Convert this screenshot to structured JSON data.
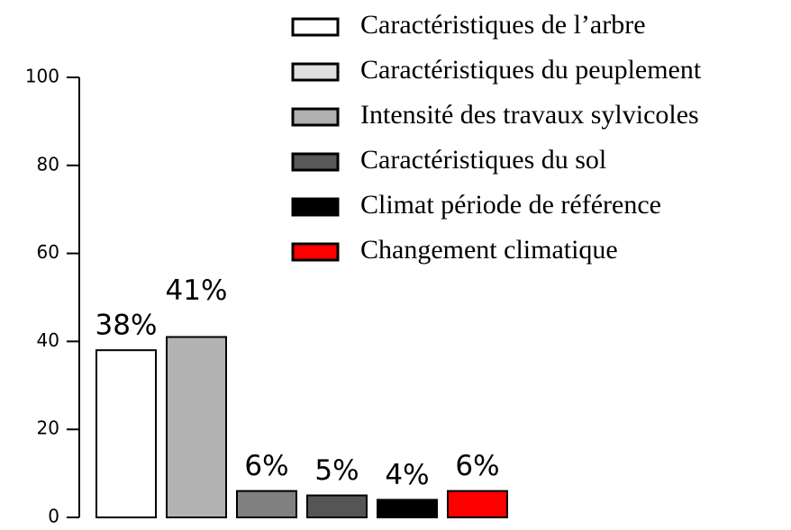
{
  "chart_data": {
    "type": "bar",
    "values": [
      38,
      41,
      6,
      5,
      4,
      6
    ],
    "value_labels": [
      "38%",
      "41%",
      "6%",
      "5%",
      "4%",
      "6%"
    ],
    "colors": [
      "#ffffff",
      "#b3b3b3",
      "#808080",
      "#555555",
      "#000000",
      "#ff0000"
    ],
    "ylim": [
      0,
      100
    ],
    "yticks": [
      0,
      20,
      40,
      60,
      80,
      100
    ],
    "legend_position": "upper right",
    "legend": [
      {
        "name": "Caractéristiques de l’arbre",
        "color": "#ffffff"
      },
      {
        "name": "Caractéristiques du peuplement",
        "color": "#e0e0e0"
      },
      {
        "name": "Intensité des travaux sylvicoles",
        "color": "#b0b0b0"
      },
      {
        "name": "Caractéristiques du sol",
        "color": "#595959"
      },
      {
        "name": "Climat période de référence",
        "color": "#000000"
      },
      {
        "name": "Changement climatique",
        "color": "#ff0000"
      }
    ]
  }
}
